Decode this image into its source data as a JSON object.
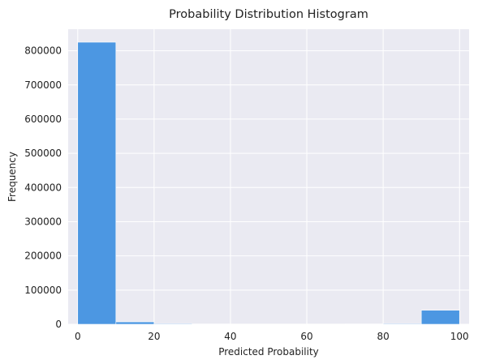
{
  "chart_data": {
    "type": "bar",
    "title": "Probability Distribution Histogram",
    "xlabel": "Predicted Probability",
    "ylabel": "Frequency",
    "xlim": [
      -2.5,
      102.5
    ],
    "ylim": [
      0,
      863000
    ],
    "xticks": [
      0,
      20,
      40,
      60,
      80,
      100
    ],
    "yticks": [
      0,
      100000,
      200000,
      300000,
      400000,
      500000,
      600000,
      700000,
      800000
    ],
    "bins": [
      {
        "x0": 0,
        "x1": 10,
        "value": 825000
      },
      {
        "x0": 10,
        "x1": 20,
        "value": 7000
      },
      {
        "x0": 20,
        "x1": 30,
        "value": 2000
      },
      {
        "x0": 30,
        "x1": 40,
        "value": 1000
      },
      {
        "x0": 40,
        "x1": 50,
        "value": 800
      },
      {
        "x0": 50,
        "x1": 60,
        "value": 800
      },
      {
        "x0": 60,
        "x1": 70,
        "value": 800
      },
      {
        "x0": 70,
        "x1": 80,
        "value": 1000
      },
      {
        "x0": 80,
        "x1": 90,
        "value": 2000
      },
      {
        "x0": 90,
        "x1": 100,
        "value": 41000
      }
    ],
    "grid": true,
    "colors": {
      "bar": "#4c97e2",
      "plot_background": "#eaeaf2",
      "grid": "#ffffff"
    }
  }
}
